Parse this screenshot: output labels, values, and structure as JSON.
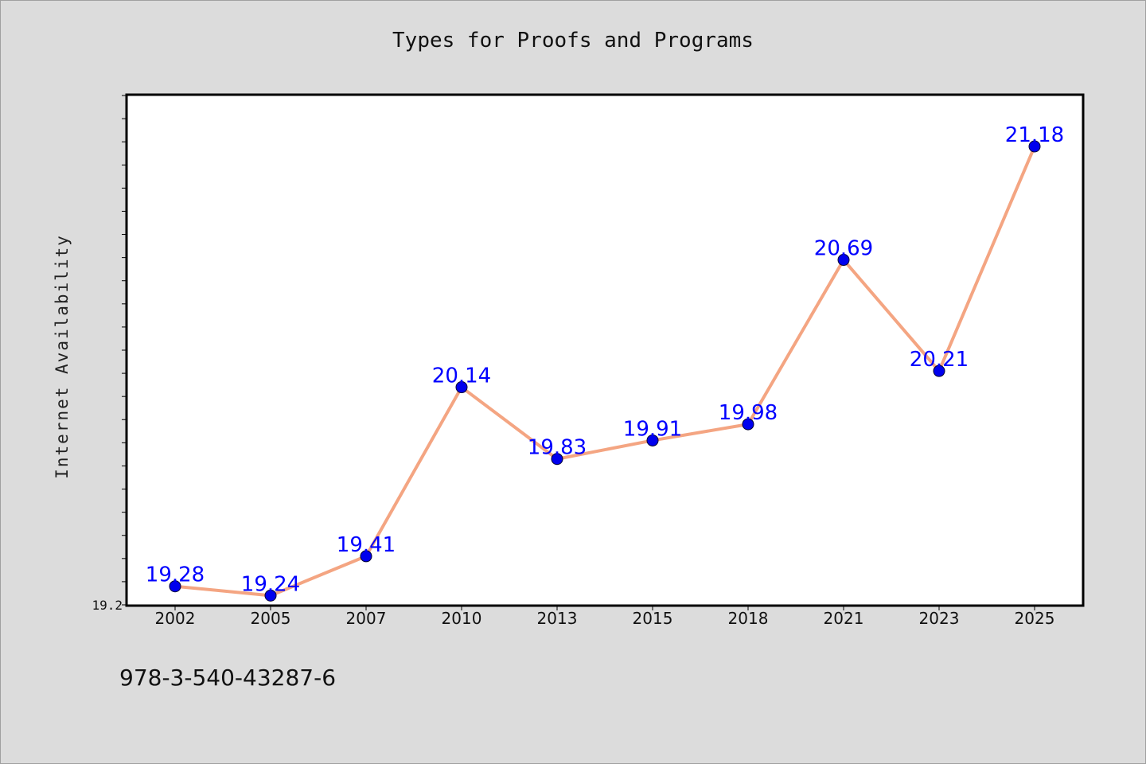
{
  "chart_data": {
    "type": "line",
    "title": "Types for Proofs and Programs",
    "xlabel": "",
    "ylabel": "Internet Availability",
    "categories": [
      "2002",
      "2005",
      "2007",
      "2010",
      "2013",
      "2015",
      "2018",
      "2021",
      "2023",
      "2025"
    ],
    "series": [
      {
        "values": [
          19.28,
          19.24,
          19.41,
          20.14,
          19.83,
          19.91,
          19.98,
          20.69,
          20.21,
          21.18
        ],
        "labels": [
          "19.28",
          "19.24",
          "19.41",
          "20.14",
          "19.83",
          "19.91",
          "19.98",
          "20.69",
          "20.21",
          "21.18"
        ],
        "line_color": "#f4a582",
        "marker_color": "#0000ee",
        "label_color": "#0000ff"
      }
    ],
    "ylim": [
      19.2,
      21.4
    ],
    "y_tick_label": "19.2",
    "grid": false,
    "legend": "none"
  },
  "footer": {
    "isbn": "978-3-540-43287-6"
  }
}
